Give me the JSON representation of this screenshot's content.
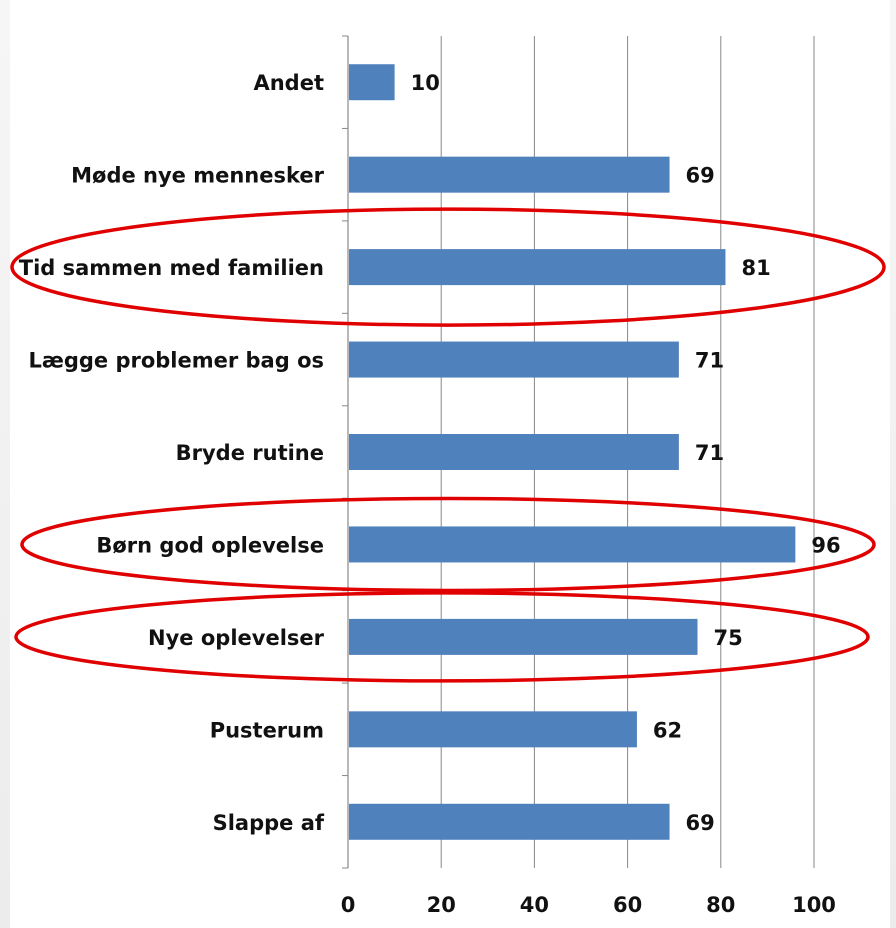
{
  "chart_data": {
    "type": "bar",
    "orientation": "horizontal",
    "categories": [
      "Andet",
      "Møde nye mennesker",
      "Tid sammen med familien",
      "Lægge problemer bag os",
      "Bryde rutine",
      "Børn god oplevelse",
      "Nye oplevelser",
      "Pusterum",
      "Slappe af"
    ],
    "values": [
      10,
      69,
      81,
      71,
      71,
      96,
      75,
      62,
      69
    ],
    "data_labels": [
      "10",
      "69",
      "81",
      "71",
      "71",
      "96",
      "75",
      "62",
      "69"
    ],
    "xlim": [
      0,
      100
    ],
    "x_ticks": [
      0,
      20,
      40,
      60,
      80,
      100
    ],
    "x_tick_labels": [
      "0",
      "20",
      "40",
      "60",
      "80",
      "100"
    ],
    "grid": "vertical",
    "title": "",
    "xlabel": "",
    "ylabel": "",
    "highlighted_categories": [
      "Tid sammen med familien",
      "Børn god oplevelse",
      "Nye oplevelser"
    ]
  },
  "colors": {
    "bar": "#4f81bd",
    "grid": "#888888",
    "axis": "#888888",
    "highlight": "#e00000"
  }
}
